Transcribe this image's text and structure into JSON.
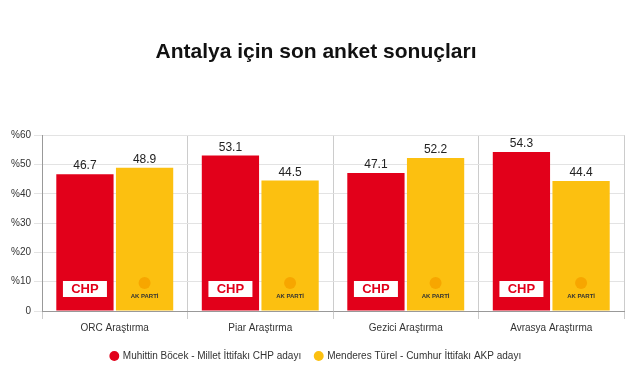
{
  "chart_data": {
    "type": "bar",
    "title": "Antalya için son anket sonuçları",
    "categories": [
      "ORC Araştırma",
      "Piar Araştırma",
      "Gezici Araştırma",
      "Avrasya Araştırma"
    ],
    "series": [
      {
        "name": "Muhittin Böcek - Millet İttifakı CHP adayı",
        "color": "#e2001a",
        "values": [
          46.7,
          53.1,
          47.1,
          54.3
        ],
        "badge": "CHP"
      },
      {
        "name": "Menderes Türel - Cumhur İttifakı AKP adayı",
        "color": "#fcc010",
        "values": [
          48.9,
          44.5,
          52.2,
          44.4
        ],
        "badge": "AK PARTİ"
      }
    ],
    "ylim": [
      0,
      60
    ],
    "yticks": [
      0,
      {
        "value": 10,
        "label": "%10"
      },
      {
        "value": 20,
        "label": "%20"
      },
      {
        "value": 30,
        "label": "%30"
      },
      {
        "value": 40,
        "label": "%40"
      },
      {
        "value": 50,
        "label": "%50"
      },
      {
        "value": 60,
        "label": "%60"
      }
    ],
    "grid": true,
    "legend": "bottom",
    "data_labels": true
  }
}
